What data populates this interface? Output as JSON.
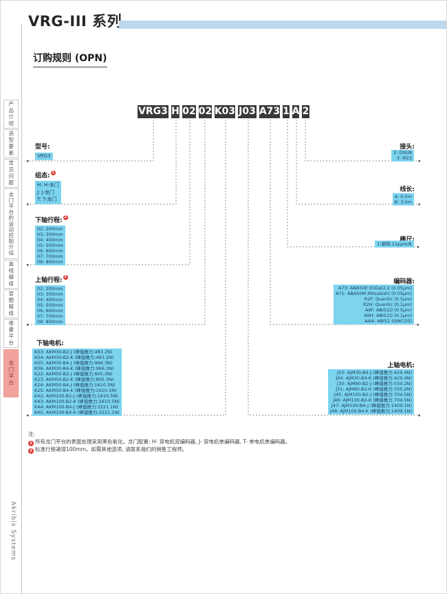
{
  "page": {
    "title": "VRG-III 系列",
    "subtitle": "订购规则 (OPN)",
    "brand_vertical": "Akribis Systems"
  },
  "colors": {
    "accent_bar": "#bdd7ee",
    "option_box": "#7cd4ef",
    "segment_box": "#3b3838",
    "active_tab": "#f1a29d",
    "note_marker": "#e03c31"
  },
  "sidebar": {
    "tabs": [
      {
        "label": "产品介绍",
        "active": false
      },
      {
        "label": "选型要素",
        "active": false
      },
      {
        "label": "常见问题",
        "active": false
      },
      {
        "label": "龙门平台的运动控制介绍",
        "active": false
      },
      {
        "label": "直线模组",
        "active": false
      },
      {
        "label": "音圈模组",
        "active": false
      },
      {
        "label": "堆叠平台",
        "active": false
      },
      {
        "label": "龙门平台",
        "active": true
      }
    ]
  },
  "part_number": {
    "segments": [
      "VRG3",
      "H",
      "02",
      "02",
      "K03",
      "J03",
      "A73",
      "1",
      "A",
      "2"
    ]
  },
  "groups": {
    "model": {
      "label": "型号:",
      "items": [
        "VRG3"
      ]
    },
    "configuration": {
      "label": "组态:",
      "sup": "1",
      "items": [
        "H: H-龙门",
        "J: J-龙门",
        "T: T-龙门"
      ]
    },
    "lower_stroke": {
      "label": "下轴行程:",
      "sup": "2",
      "items": [
        "02: 200mm",
        "03: 300mm",
        "04: 400mm",
        "05: 500mm",
        "06: 600mm",
        "07: 700mm",
        "08: 800mm"
      ]
    },
    "upper_stroke": {
      "label": "上轴行程:",
      "sup": "2",
      "items": [
        "02: 200mm",
        "03: 300mm",
        "04: 400mm",
        "05: 500mm",
        "06: 600mm",
        "07: 700mm",
        "08: 800mm"
      ]
    },
    "lower_motor": {
      "label": "下轴电机:",
      "items": [
        "K03: AKM30-B2-J (峰值推力:483.2N)",
        "K04: AKM30-B2-K (峰值推力:483.2N)",
        "K05: AKM30-B4-J (峰值推力:966.3N)",
        "K06: AKM30-B4-K (峰值推力:966.3N)",
        "K22: AKM50-B2-J (峰值推力:805.3N)",
        "K23: AKM50-B2-K (峰值推力:805.3N)",
        "K24: AKM50-B4-J (峰值推力:1610.5N)",
        "K25: AKM50-B4-K (峰值推力:1610.5N)",
        "K42: AKM100-B2-J (峰值推力:1610.5N)",
        "K43: AKM100-B2-K (峰值推力:1610.5N)",
        "K44: AKM100-B4-J (峰值推力:3221.1N)",
        "K45: AKM100-B4-K (峰值推力:3221.1N)"
      ]
    },
    "connector": {
      "label": "接头:",
      "items": [
        "2: DSUB",
        "3: M23"
      ]
    },
    "cable_length": {
      "label": "线长:",
      "items": [
        "A: 0.5m",
        "B: 3.0m"
      ]
    },
    "scale": {
      "label": "栅尺:",
      "items": [
        "1:钢带,11ppm/K"
      ]
    },
    "encoder": {
      "label": "编码器:",
      "items": [
        "A73: ABA50E EnDat2.2 (0.05μm)",
        "A71: ABA50M Mitsubishi (0.05μm)",
        "R2F: Quantic (0.5μm)",
        "R2H: Quantic (0.1μm)",
        "A9F: ABI51D (0.5μm)",
        "A9H: ABI51D (0.1μm)",
        "AAA: ABI52 (SINCOS)"
      ]
    },
    "upper_motor": {
      "label": "上轴电机:",
      "items": [
        "J03: AJM30-B4-J (峰值推力:429.4N)",
        "J04: AJM30-B4-K (峰值推力:429.4N)",
        "J30: AJM80-B2-J (峰值推力:550.2N)",
        "J31: AJM80-B2-K (峰值推力:550.2N)",
        "J45: AJM100-B2-J (峰值推力:704.5N)",
        "J46: AJM100-B2-K (峰值推力:704.5N)",
        "J47: AJM100-B4-J (峰值推力:1409.1N)",
        "J48: AJM100-B4-K (峰值推力:1409.1N)"
      ]
    }
  },
  "notes": {
    "heading": "注:",
    "items": [
      {
        "num": "1",
        "text": "所有龙门平台的表面处理采用黑色氧化。龙门配置: H- 双电机双编码器, J- 双电机单编码器, T- 单电机单编码器。"
      },
      {
        "num": "2",
        "text": "标准行程递增100mm。如需其他选项, 请联系我们的销售工程师。"
      }
    ]
  }
}
